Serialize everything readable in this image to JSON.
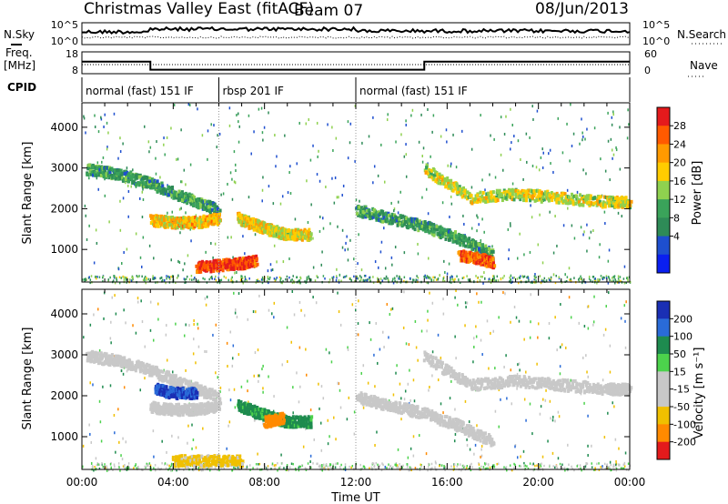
{
  "header": {
    "site": "Christmas Valley East (fitACF)",
    "beam": "Beam 07",
    "date": "08/Jun/2013"
  },
  "noise_panel": {
    "left_label": "N.Sky",
    "right_label": "N.Search",
    "left_ticks": [
      "10^5",
      "10^0"
    ],
    "right_ticks": [
      "10^5",
      "10^0"
    ]
  },
  "freq_panel": {
    "left_label_line1": "Freq.",
    "left_label_line2": "[MHz]",
    "right_label": "Nave",
    "left_ticks": [
      "18",
      "8"
    ],
    "right_ticks": [
      "60",
      "0"
    ],
    "freq_steps": [
      {
        "t0": 0,
        "t1": 3,
        "value": 13.5
      },
      {
        "t0": 3,
        "t1": 15,
        "value": 9.8
      },
      {
        "t0": 15,
        "t1": 24,
        "value": 13.5
      }
    ],
    "nave_level": 12
  },
  "cpid": {
    "label": "CPID",
    "segments": [
      {
        "t0": 0,
        "t1": 6,
        "label": "normal (fast) 151 IF"
      },
      {
        "t0": 6,
        "t1": 12,
        "label": "rbsp 201 IF"
      },
      {
        "t0": 12,
        "t1": 24,
        "label": "normal (fast) 151 IF"
      }
    ]
  },
  "chart_data": [
    {
      "type": "heatmap",
      "name": "power",
      "ylabel": "Slant Range [km]",
      "xlim": [
        0,
        24
      ],
      "ylim": [
        200,
        4600
      ],
      "yticks": [
        "1000",
        "2000",
        "3000",
        "4000"
      ],
      "colorbar_label": "Power [dB]",
      "colorbar_ticks": [
        "28",
        "24",
        "20",
        "16",
        "12",
        "8",
        "4"
      ],
      "colorbar_colors": [
        "#e41a1c",
        "#ff5a00",
        "#ff9a00",
        "#ffcc00",
        "#8fd14f",
        "#3aa35a",
        "#2e8b57",
        "#1e4fcf",
        "#0a1ff0"
      ],
      "bands": [
        {
          "t": [
            0.2,
            1.5,
            3,
            4.5,
            6
          ],
          "r": [
            3000,
            2900,
            2650,
            2300,
            2000
          ],
          "v": 10
        },
        {
          "t": [
            3,
            4,
            5,
            6
          ],
          "r": [
            1750,
            1700,
            1700,
            1800
          ],
          "v": 20
        },
        {
          "t": [
            6.8,
            7.5,
            8.3,
            9,
            10
          ],
          "r": [
            1800,
            1650,
            1500,
            1400,
            1400
          ],
          "v": 18
        },
        {
          "t": [
            5,
            6,
            7,
            7.6
          ],
          "r": [
            600,
            650,
            700,
            750
          ],
          "v": 28
        },
        {
          "t": [
            12,
            13.5,
            15,
            16.5,
            18
          ],
          "r": [
            2000,
            1800,
            1600,
            1300,
            900
          ],
          "v": 10
        },
        {
          "t": [
            15,
            17,
            19,
            21,
            23,
            24
          ],
          "r": [
            3000,
            2300,
            2400,
            2300,
            2200,
            2200
          ],
          "v": 17
        },
        {
          "t": [
            16.5,
            17.5,
            18
          ],
          "r": [
            900,
            800,
            700
          ],
          "v": 26
        }
      ]
    },
    {
      "type": "heatmap",
      "name": "velocity",
      "ylabel": "Slant Range [km]",
      "xlabel": "Time UT",
      "xlim": [
        0,
        24
      ],
      "ylim": [
        200,
        4600
      ],
      "xticks": [
        "00:00",
        "04:00",
        "08:00",
        "12:00",
        "16:00",
        "20:00",
        "00:00"
      ],
      "yticks": [
        "1000",
        "2000",
        "3000",
        "4000"
      ],
      "colorbar_label": "Velocity [m s⁻¹]",
      "colorbar_ticks": [
        "200",
        "100",
        "50",
        "15",
        "-15",
        "-50",
        "-100",
        "-200"
      ],
      "colorbar_colors": [
        "#1a2fb4",
        "#2a6bd8",
        "#1e8b4f",
        "#4cd24c",
        "#c8c8c8",
        "#c8c8c8",
        "#f0c000",
        "#ff8a00",
        "#e41a1c"
      ],
      "bands": [
        {
          "t": [
            0.2,
            1.5,
            3,
            4.5,
            6
          ],
          "r": [
            3000,
            2900,
            2650,
            2300,
            2000
          ],
          "v": 0
        },
        {
          "t": [
            3.2,
            4,
            5
          ],
          "r": [
            2200,
            2100,
            2100
          ],
          "v": 200
        },
        {
          "t": [
            3,
            4,
            5,
            6
          ],
          "r": [
            1750,
            1700,
            1700,
            1800
          ],
          "v": 0
        },
        {
          "t": [
            6.8,
            7.5,
            8.3,
            9,
            10
          ],
          "r": [
            1800,
            1650,
            1500,
            1400,
            1400
          ],
          "v": 60
        },
        {
          "t": [
            8,
            8.8
          ],
          "r": [
            1400,
            1500
          ],
          "v": -150
        },
        {
          "t": [
            4,
            5.5,
            7
          ],
          "r": [
            450,
            450,
            450
          ],
          "v": -60
        },
        {
          "t": [
            12,
            13.5,
            15,
            16.5,
            18
          ],
          "r": [
            2000,
            1800,
            1600,
            1300,
            900
          ],
          "v": 0
        },
        {
          "t": [
            15,
            17,
            19,
            21,
            23,
            24
          ],
          "r": [
            3000,
            2300,
            2400,
            2300,
            2200,
            2200
          ],
          "v": 0
        }
      ]
    }
  ]
}
